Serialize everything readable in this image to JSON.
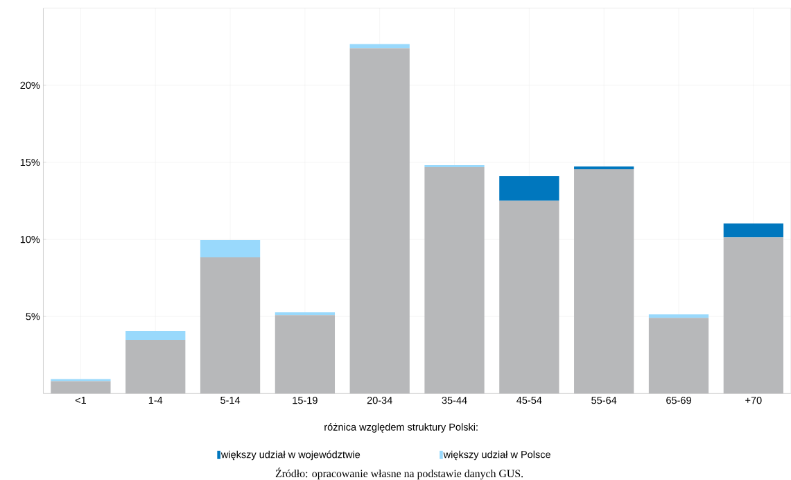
{
  "chart_data": {
    "type": "bar",
    "stacked": true,
    "categories": [
      "<1",
      "1-4",
      "5-14",
      "15-19",
      "20-34",
      "35-44",
      "45-54",
      "55-64",
      "65-69",
      "+70"
    ],
    "series": [
      {
        "color": "#b7b8ba",
        "values": [
          0.8,
          3.48,
          8.84,
          5.09,
          22.41,
          14.69,
          12.5,
          14.55,
          4.91,
          10.13
        ]
      },
      {
        "name": "większy udział w województwie",
        "color": "#0077be",
        "values": [
          null,
          null,
          null,
          null,
          null,
          null,
          1.6,
          0.18,
          null,
          0.9
        ]
      },
      {
        "name": "większy udział w Polsce",
        "color": "#99d9fc",
        "values": [
          0.14,
          0.58,
          1.12,
          0.18,
          0.27,
          0.13,
          null,
          null,
          0.22,
          null
        ]
      }
    ],
    "ylim": [
      0,
      25
    ],
    "yticks": [
      {
        "value": 5,
        "label": "5%"
      },
      {
        "value": 10,
        "label": "10%"
      },
      {
        "value": 15,
        "label": "15%"
      },
      {
        "value": 20,
        "label": "20%"
      }
    ],
    "grid": true,
    "legend": "bottom",
    "legend_title": "różnica względem struktury Polski:",
    "annotations": [
      "Źródło: opracowanie własne na podstawie danych GUS."
    ]
  }
}
